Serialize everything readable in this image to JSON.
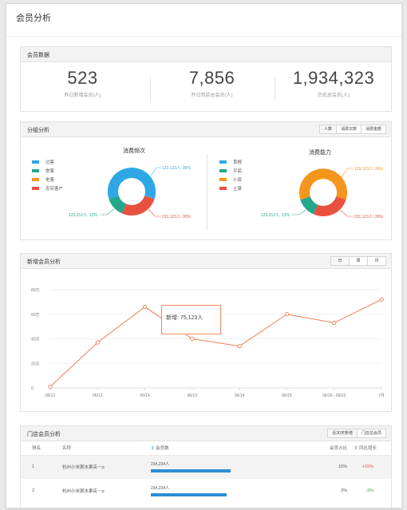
{
  "page_title": "会员分析",
  "member_data": {
    "title": "会员数据",
    "stats": [
      {
        "value": "523",
        "label": "昨日新增会员(人)"
      },
      {
        "value": "7,856",
        "label": "昨日到店总会员(人)"
      },
      {
        "value": "1,934,323",
        "label": "历史总会员(人)"
      }
    ]
  },
  "group_analysis": {
    "title": "分组分析",
    "buttons": [
      "人数",
      "消费次数",
      "消费金额"
    ],
    "left": {
      "title": "消费频次",
      "legend": [
        {
          "label": "过客",
          "color": "#2fa7e6"
        },
        {
          "label": "常客",
          "color": "#22a68c"
        },
        {
          "label": "老客",
          "color": "#f5961c"
        },
        {
          "label": "忠实客户",
          "color": "#e9513f"
        }
      ],
      "labels": {
        "blue": "123,123人, 36%",
        "red": "231,123人, 30%",
        "green": "123,212人, 12%"
      }
    },
    "right": {
      "title": "消费能力",
      "legend": [
        {
          "label": "草根",
          "color": "#2fa7e6"
        },
        {
          "label": "平民",
          "color": "#22a68c"
        },
        {
          "label": "小资",
          "color": "#f5961c"
        },
        {
          "label": "土豪",
          "color": "#e9513f"
        }
      ],
      "labels": {
        "orange": "123,123人, 36%",
        "red": "231,123人, 30%",
        "green": "123,212人, 12%"
      }
    }
  },
  "new_member": {
    "title": "新增会员分析",
    "buttons": [
      "日",
      "周",
      "月"
    ],
    "tooltip": "新增: 75,123人",
    "colors": {
      "line": "#f07e52"
    }
  },
  "chart_data": {
    "type": "line",
    "x": [
      "06/12",
      "06/13",
      "06/14",
      "06/13",
      "06/14",
      "06/15",
      "06/16 - 06/22",
      "7月"
    ],
    "series": [
      {
        "values": [
          1,
          37,
          66,
          40,
          34,
          60,
          53,
          72
        ]
      }
    ],
    "yticks": [
      "80万",
      "60万",
      "40万",
      "20万",
      "0"
    ],
    "ylim": [
      0,
      80
    ],
    "grid": true
  },
  "store_analysis": {
    "title": "门店会员分析",
    "buttons": [
      "近30天新增",
      "门店总会员"
    ],
    "columns": [
      "排名",
      "名称",
      "会员数",
      "会员占比",
      "同比增长"
    ],
    "rows": [
      {
        "rank": "1",
        "name": "杭州小米粥水果店－α",
        "members": "234,234人",
        "members_fill": 1.0,
        "share": "15%",
        "growth": "+15%",
        "growth_color": "#e9513f"
      },
      {
        "rank": "2",
        "name": "杭州小米粥水果店－α",
        "members": "234,234人",
        "members_fill": 0.95,
        "share": "3%",
        "growth": "-3%",
        "growth_color": "#37a63b"
      }
    ]
  }
}
